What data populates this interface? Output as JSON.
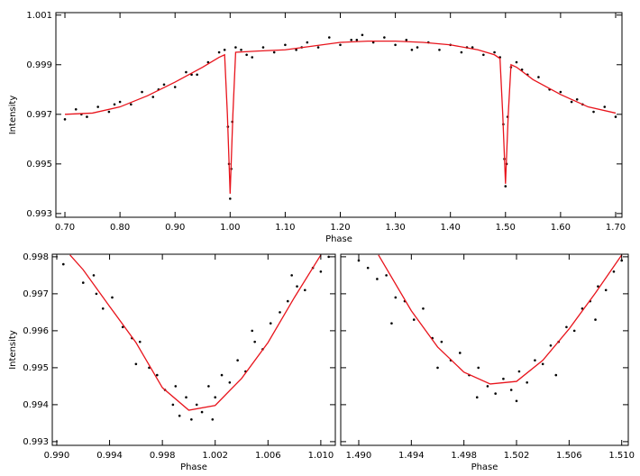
{
  "chart_data": [
    {
      "type": "scatter",
      "xlabel": "Phase",
      "ylabel": "Intensity",
      "xlim": [
        0.6836,
        1.7115
      ],
      "ylim": [
        0.99285,
        1.0011
      ],
      "xticks": [
        {
          "value": 0.7,
          "label": "0.70"
        },
        {
          "value": 0.8,
          "label": "0.80"
        },
        {
          "value": 0.9,
          "label": "0.90"
        },
        {
          "value": 1.0,
          "label": "1.00"
        },
        {
          "value": 1.1,
          "label": "1.10"
        },
        {
          "value": 1.2,
          "label": "1.20"
        },
        {
          "value": 1.3,
          "label": "1.30"
        },
        {
          "value": 1.4,
          "label": "1.40"
        },
        {
          "value": 1.5,
          "label": "1.50"
        },
        {
          "value": 1.6,
          "label": "1.60"
        },
        {
          "value": 1.7,
          "label": "1.70"
        }
      ],
      "yticks": [
        0.993,
        0.995,
        0.997,
        0.999,
        1.001
      ],
      "show_ytick_labels": true,
      "point_color": "#000000",
      "x": [
        0.7,
        0.72,
        0.74,
        0.76,
        0.78,
        0.8,
        0.82,
        0.84,
        0.86,
        0.88,
        0.9,
        0.92,
        0.94,
        0.96,
        0.98,
        0.99,
        0.996,
        0.998,
        1.0,
        1.002,
        1.004,
        1.01,
        1.02,
        1.04,
        1.06,
        1.08,
        1.1,
        1.12,
        1.14,
        1.16,
        1.18,
        1.2,
        1.22,
        1.24,
        1.26,
        1.28,
        1.3,
        1.32,
        1.34,
        1.36,
        1.38,
        1.4,
        1.42,
        1.44,
        1.46,
        1.48,
        1.49,
        1.496,
        1.498,
        1.5,
        1.502,
        1.504,
        1.51,
        1.52,
        1.54,
        1.56,
        1.58,
        1.6,
        1.62,
        1.64,
        1.66,
        1.68,
        1.7,
        0.73,
        0.79,
        0.87,
        0.93,
        1.03,
        1.13,
        1.23,
        1.33,
        1.43,
        1.53,
        1.63
      ],
      "values": [
        0.9968,
        0.9972,
        0.9969,
        0.9973,
        0.9971,
        0.9975,
        0.9974,
        0.9979,
        0.9977,
        0.9982,
        0.9981,
        0.9987,
        0.9986,
        0.9991,
        0.9995,
        0.9996,
        0.9965,
        0.995,
        0.9936,
        0.9948,
        0.9967,
        0.9997,
        0.9996,
        0.9993,
        0.9997,
        0.9995,
        0.9998,
        0.9996,
        0.9999,
        0.9997,
        1.0001,
        0.9998,
        1.0,
        1.0002,
        0.9999,
        1.0001,
        0.9998,
        1.0,
        0.9997,
        0.9999,
        0.9996,
        0.9998,
        0.9995,
        0.9997,
        0.9994,
        0.9995,
        0.9993,
        0.9966,
        0.9952,
        0.9941,
        0.995,
        0.9969,
        0.9989,
        0.9991,
        0.9986,
        0.9985,
        0.998,
        0.9979,
        0.9975,
        0.9974,
        0.9971,
        0.9973,
        0.9969,
        0.997,
        0.9974,
        0.998,
        0.9986,
        0.9994,
        0.9997,
        1.0,
        0.9996,
        0.9997,
        0.9988,
        0.9976
      ],
      "line": {
        "color": "#e8141c",
        "x": [
          0.7,
          0.75,
          0.8,
          0.85,
          0.9,
          0.95,
          0.98,
          0.99,
          0.995,
          1.0,
          1.005,
          1.01,
          1.05,
          1.1,
          1.15,
          1.2,
          1.25,
          1.3,
          1.35,
          1.4,
          1.45,
          1.48,
          1.49,
          1.495,
          1.5,
          1.505,
          1.51,
          1.52,
          1.55,
          1.6,
          1.65,
          1.7
        ],
        "values": [
          0.997,
          0.99705,
          0.9973,
          0.99775,
          0.9983,
          0.9989,
          0.9993,
          0.9994,
          0.997,
          0.9938,
          0.997,
          0.9995,
          0.99955,
          0.9996,
          0.99975,
          0.9999,
          0.99995,
          0.99995,
          0.9999,
          0.9998,
          0.9996,
          0.9994,
          0.99925,
          0.997,
          0.9942,
          0.997,
          0.999,
          0.9989,
          0.9984,
          0.9978,
          0.9973,
          0.99705
        ]
      }
    },
    {
      "type": "scatter",
      "xlabel": "Phase",
      "ylabel": "Intensity",
      "xlim": [
        0.98966,
        1.0111
      ],
      "ylim": [
        0.9929,
        0.99807
      ],
      "xticks": [
        {
          "value": 0.99,
          "label": "0.990"
        },
        0.994,
        0.998,
        1.002,
        1.006,
        {
          "value": 1.01,
          "label": "1.010"
        }
      ],
      "yticks": [
        0.993,
        0.994,
        0.995,
        0.996,
        0.997,
        0.998
      ],
      "show_ytick_labels": true,
      "point_color": "#000000",
      "x": [
        0.9905,
        0.9912,
        0.992,
        0.9928,
        0.9935,
        0.9942,
        0.995,
        0.9957,
        0.9963,
        0.997,
        0.9976,
        0.9982,
        0.9988,
        0.9993,
        0.9998,
        1.0002,
        1.0006,
        1.001,
        1.0015,
        1.002,
        1.0025,
        1.0031,
        1.0037,
        1.0043,
        1.005,
        1.0056,
        1.0062,
        1.0069,
        1.0075,
        1.0082,
        1.0088,
        1.0094,
        1.01,
        1.0106,
        0.993,
        0.996,
        0.999,
        1.0018,
        1.0048,
        1.0078
      ],
      "values": [
        0.9978,
        0.9981,
        0.9973,
        0.9975,
        0.9966,
        0.9969,
        0.9961,
        0.9958,
        0.9957,
        0.995,
        0.9948,
        0.9944,
        0.994,
        0.9937,
        0.9942,
        0.9936,
        0.994,
        0.9938,
        0.9945,
        0.9942,
        0.9948,
        0.9946,
        0.9952,
        0.9949,
        0.9957,
        0.9955,
        0.9962,
        0.9965,
        0.9968,
        0.9972,
        0.9971,
        0.9977,
        0.9976,
        0.998,
        0.997,
        0.9951,
        0.9945,
        0.9936,
        0.996,
        0.9975
      ],
      "line": {
        "color": "#e8141c",
        "x": [
          0.991,
          0.992,
          0.994,
          0.996,
          0.998,
          1.0,
          1.002,
          1.004,
          1.006,
          1.008,
          1.01
        ],
        "values": [
          0.99805,
          0.99765,
          0.99666,
          0.99568,
          0.99446,
          0.99385,
          0.99398,
          0.99471,
          0.99568,
          0.9969,
          0.99805
        ]
      }
    },
    {
      "type": "scatter",
      "xlabel": "Phase",
      "xlim": [
        1.48863,
        1.5105
      ],
      "ylim": [
        0.9929,
        0.99807
      ],
      "xticks": [
        {
          "value": 1.49,
          "label": "1.490"
        },
        1.494,
        1.498,
        1.502,
        1.506,
        {
          "value": 1.51,
          "label": "1.510"
        }
      ],
      "yticks": [
        0.993,
        0.994,
        0.995,
        0.996,
        0.997,
        0.998
      ],
      "show_ytick_labels": false,
      "point_color": "#000000",
      "x": [
        1.49,
        1.4907,
        1.4914,
        1.4921,
        1.4928,
        1.4935,
        1.4942,
        1.4949,
        1.4956,
        1.4963,
        1.497,
        1.4977,
        1.4984,
        1.4991,
        1.4998,
        1.5004,
        1.501,
        1.5016,
        1.5022,
        1.5028,
        1.5034,
        1.504,
        1.5046,
        1.5052,
        1.5058,
        1.5064,
        1.507,
        1.5076,
        1.5082,
        1.5088,
        1.5094,
        1.51,
        1.4925,
        1.496,
        1.499,
        1.502,
        1.505,
        1.508
      ],
      "values": [
        0.9979,
        0.9977,
        0.9974,
        0.9975,
        0.9969,
        0.9968,
        0.9963,
        0.9966,
        0.9958,
        0.9957,
        0.9952,
        0.9954,
        0.9948,
        0.995,
        0.9945,
        0.9943,
        0.9947,
        0.9944,
        0.9949,
        0.9946,
        0.9952,
        0.9951,
        0.9956,
        0.9957,
        0.9961,
        0.996,
        0.9966,
        0.9968,
        0.9972,
        0.9971,
        0.9976,
        0.9979,
        0.9962,
        0.995,
        0.9942,
        0.9941,
        0.9948,
        0.9963
      ],
      "line": {
        "color": "#e8141c",
        "x": [
          1.4915,
          1.494,
          1.496,
          1.498,
          1.5,
          1.502,
          1.504,
          1.506,
          1.508,
          1.51
        ],
        "values": [
          0.99805,
          0.99654,
          0.99556,
          0.99488,
          0.99456,
          0.99463,
          0.9952,
          0.99605,
          0.99702,
          0.99805
        ]
      }
    }
  ]
}
